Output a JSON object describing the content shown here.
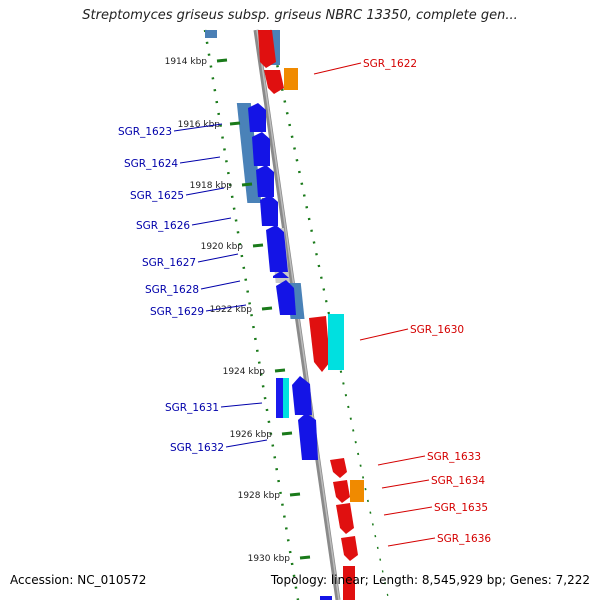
{
  "header": {
    "title": "Streptomyces griseus subsp. griseus NBRC 13350, complete gen..."
  },
  "footer": {
    "accession": "Accession: NC_010572",
    "summary": "Topology: linear; Length: 8,545,929 bp; Genes: 7,222"
  },
  "scale": {
    "ticks": [
      "1914 kbp",
      "1916 kbp",
      "1918 kbp",
      "1920 kbp",
      "1922 kbp",
      "1924 kbp",
      "1926 kbp",
      "1928 kbp",
      "1930 kbp"
    ]
  },
  "colors": {
    "forward_label": "#d40000",
    "reverse_label": "#0000aa",
    "tick": "#1a7a1a"
  },
  "genes": [
    {
      "label": "SGR_1622",
      "strand": "forward"
    },
    {
      "label": "SGR_1623",
      "strand": "reverse"
    },
    {
      "label": "SGR_1624",
      "strand": "reverse"
    },
    {
      "label": "SGR_1625",
      "strand": "reverse"
    },
    {
      "label": "SGR_1626",
      "strand": "reverse"
    },
    {
      "label": "SGR_1627",
      "strand": "reverse"
    },
    {
      "label": "SGR_1628",
      "strand": "reverse"
    },
    {
      "label": "SGR_1629",
      "strand": "reverse"
    },
    {
      "label": "SGR_1630",
      "strand": "forward"
    },
    {
      "label": "SGR_1631",
      "strand": "reverse"
    },
    {
      "label": "SGR_1632",
      "strand": "reverse"
    },
    {
      "label": "SGR_1633",
      "strand": "forward"
    },
    {
      "label": "SGR_1634",
      "strand": "forward"
    },
    {
      "label": "SGR_1635",
      "strand": "forward"
    },
    {
      "label": "SGR_1636",
      "strand": "forward"
    }
  ]
}
